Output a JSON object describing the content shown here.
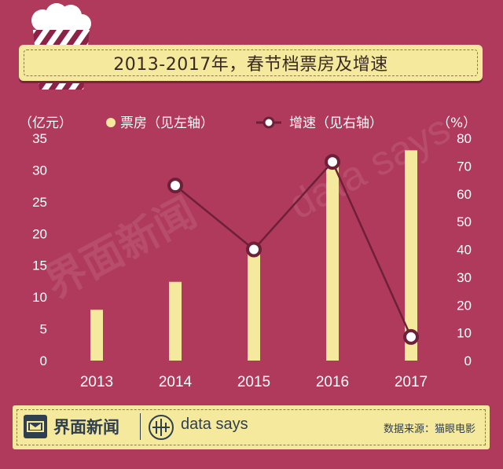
{
  "title": "2013-2017年，春节档票房及增速",
  "chart_data": {
    "type": "bar+line",
    "categories": [
      "2013",
      "2014",
      "2015",
      "2016",
      "2017"
    ],
    "series": [
      {
        "name": "票房（见左轴）",
        "kind": "bar",
        "axis": "left",
        "values": [
          8,
          12.4,
          18,
          30.8,
          33.1
        ],
        "color": "#f4e99d"
      },
      {
        "name": "增速（见右轴）",
        "kind": "line",
        "axis": "right",
        "values": [
          null,
          63,
          40,
          71.5,
          8.5
        ],
        "color": "#6e1f3a"
      }
    ],
    "left_axis": {
      "unit_label": "（亿元）",
      "ylim": [
        0,
        35
      ],
      "ticks": [
        "0",
        "5",
        "10",
        "15",
        "20",
        "25",
        "30",
        "35"
      ]
    },
    "right_axis": {
      "unit_label": "（%）",
      "ylim": [
        0,
        80
      ],
      "ticks": [
        "0",
        "10",
        "20",
        "30",
        "40",
        "50",
        "60",
        "70",
        "80"
      ]
    },
    "grid": false,
    "legend_position": "top"
  },
  "footer": {
    "brand_name": "界面新闻",
    "brand_secondary": "data says",
    "source": "数据来源：猫眼电影"
  },
  "watermark": {
    "brand_cn": "界面新闻",
    "brand_en": "data says"
  },
  "colors": {
    "background": "#b03a5b",
    "bar": "#f4e99d",
    "line": "#6e1f3a",
    "panel": "#f4e99d"
  }
}
